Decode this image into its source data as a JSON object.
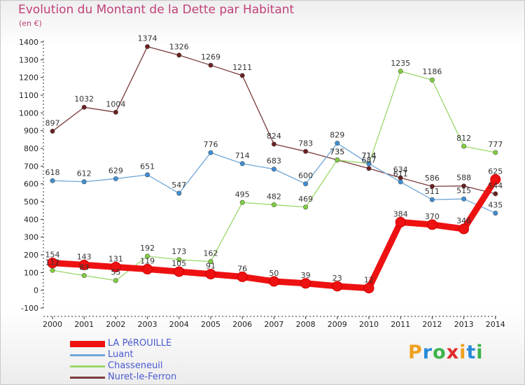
{
  "chart_data": {
    "type": "line",
    "title": "Evolution du Montant de la Dette par Habitant",
    "unit_label": "(en €)",
    "x": [
      "2000",
      "2001",
      "2002",
      "2003",
      "2004",
      "2005",
      "2006",
      "2007",
      "2008",
      "2009",
      "2010",
      "2011",
      "2012",
      "2013",
      "2014"
    ],
    "ylim": [
      -100,
      1400
    ],
    "yticks": [
      -100,
      0,
      100,
      200,
      300,
      400,
      500,
      600,
      700,
      800,
      900,
      1000,
      1100,
      1200,
      1300,
      1400
    ],
    "grid": false,
    "legend_position": "bottom-left",
    "series": [
      {
        "name": "Nuret-le-Ferron",
        "color": "#6b1f1f",
        "line": "#7a3a3a",
        "values": [
          897,
          1032,
          1004,
          1374,
          1326,
          1269,
          1211,
          824,
          783,
          735,
          687,
          634,
          586,
          588,
          544
        ]
      },
      {
        "name": "Chasseneuil",
        "color": "#7fd13b",
        "line": "#9ad86a",
        "values": [
          112,
          83,
          55,
          192,
          173,
          162,
          495,
          482,
          469,
          735,
          714,
          1235,
          1186,
          812,
          777
        ]
      },
      {
        "name": "Luant",
        "color": "#3d8fd6",
        "line": "#6fa6d8",
        "values": [
          618,
          612,
          629,
          651,
          547,
          776,
          714,
          683,
          600,
          829,
          714,
          611,
          511,
          515,
          435
        ]
      },
      {
        "name": "LA PéROUILLE",
        "color": "#ee1111",
        "line": "#ee1111",
        "values": [
          154,
          143,
          131,
          119,
          105,
          91,
          76,
          50,
          39,
          23,
          12,
          384,
          370,
          346,
          625
        ]
      }
    ],
    "data_labels": [
      {
        "series": "Nuret-le-Ferron",
        "labels": [
          "897",
          "1032",
          "1004",
          "1374",
          "1326",
          "1269",
          "1211",
          "824",
          "783",
          "735",
          "687",
          "634",
          "586",
          "588",
          "544"
        ]
      },
      {
        "series": "Chasseneuil",
        "labels": [
          "112",
          "83",
          "55",
          "192",
          "173",
          "162",
          "495",
          "482",
          "469",
          "735",
          "714",
          "1235",
          "1186",
          "812",
          "777"
        ]
      },
      {
        "series": "Luant",
        "labels": [
          "618",
          "612",
          "629",
          "651",
          "547",
          "776",
          "714",
          "683",
          "600",
          "829",
          "714",
          "611",
          "511",
          "515",
          "435"
        ]
      },
      {
        "series": "LA PéROUILLE",
        "labels": [
          "154",
          "143",
          "131",
          "119",
          "105",
          "91",
          "76",
          "50",
          "39",
          "23",
          "12",
          "384",
          "370",
          "346",
          "625"
        ]
      }
    ]
  },
  "legend": {
    "items": [
      {
        "label": "LA PéROUILLE",
        "color": "#ee1111"
      },
      {
        "label": "Luant",
        "color": "#6fa6d8"
      },
      {
        "label": "Chasseneuil",
        "color": "#9ad86a"
      },
      {
        "label": "Nuret-le-Ferron",
        "color": "#7a3a3a"
      }
    ]
  },
  "logo": {
    "text": "Proxiti",
    "letters": [
      {
        "ch": "P",
        "color": "#f0a020"
      },
      {
        "ch": "r",
        "color": "#2a8ad8"
      },
      {
        "ch": "o",
        "color": "#3cb44a"
      },
      {
        "ch": "x",
        "color": "#e02a2a"
      },
      {
        "ch": "i",
        "color": "#f0a020"
      },
      {
        "ch": "t",
        "color": "#2a8ad8"
      },
      {
        "ch": "i",
        "color": "#3cb44a"
      }
    ]
  }
}
